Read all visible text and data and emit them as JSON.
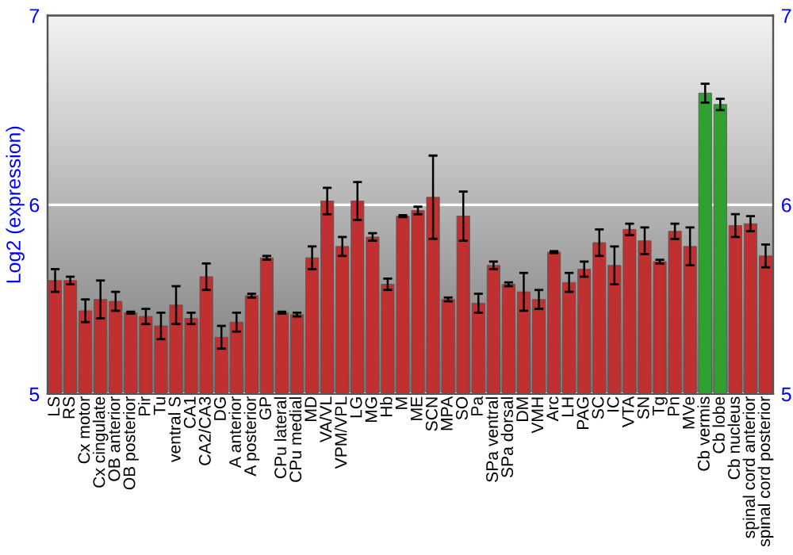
{
  "chart_data": {
    "type": "bar",
    "ylabel": "Log2 (expression)",
    "categories": [
      "LS",
      "RS",
      "Cx motor",
      "Cx cingulate",
      "OB anterior",
      "OB posterior",
      "Pir",
      "Tu",
      "ventral S",
      "CA1",
      "CA2/CA3",
      "DG",
      "A anterior",
      "A posterior",
      "GP",
      "CPu lateral",
      "CPu medial",
      "MD",
      "VA/VL",
      "VPM/VPL",
      "LG",
      "MG",
      "Hb",
      "M",
      "ME",
      "SCN",
      "MPA",
      "SO",
      "Pa",
      "SPa ventral",
      "SPa dorsal",
      "DM",
      "VMH",
      "Arc",
      "LH",
      "PAG",
      "SC",
      "IC",
      "VTA",
      "SN",
      "Tg",
      "Pn",
      "MVe",
      "Cb vermis",
      "Cb lobe",
      "Cb nucleus",
      "spinal cord anterior",
      "spinal cord posterior"
    ],
    "values": [
      5.6,
      5.6,
      5.44,
      5.5,
      5.49,
      5.43,
      5.41,
      5.36,
      5.47,
      5.4,
      5.62,
      5.3,
      5.38,
      5.52,
      5.72,
      5.43,
      5.42,
      5.72,
      6.02,
      5.78,
      6.02,
      5.83,
      5.58,
      5.94,
      5.97,
      6.04,
      5.5,
      5.94,
      5.48,
      5.68,
      5.58,
      5.54,
      5.5,
      5.75,
      5.59,
      5.66,
      5.8,
      5.68,
      5.87,
      5.81,
      5.7,
      5.86,
      5.78,
      6.59,
      6.53,
      5.89,
      5.9,
      5.73
    ],
    "errors": [
      0.06,
      0.02,
      0.06,
      0.1,
      0.05,
      0.005,
      0.04,
      0.07,
      0.1,
      0.03,
      0.07,
      0.06,
      0.05,
      0.01,
      0.01,
      0.005,
      0.01,
      0.06,
      0.07,
      0.05,
      0.1,
      0.02,
      0.03,
      0.005,
      0.02,
      0.22,
      0.01,
      0.13,
      0.05,
      0.02,
      0.01,
      0.1,
      0.05,
      0.005,
      0.05,
      0.04,
      0.07,
      0.1,
      0.03,
      0.07,
      0.01,
      0.04,
      0.1,
      0.05,
      0.03,
      0.06,
      0.04,
      0.06
    ],
    "colors": [
      "#c03030",
      "#c03030",
      "#c03030",
      "#c03030",
      "#c03030",
      "#c03030",
      "#c03030",
      "#c03030",
      "#c03030",
      "#c03030",
      "#c03030",
      "#c03030",
      "#c03030",
      "#c03030",
      "#c03030",
      "#c03030",
      "#c03030",
      "#c03030",
      "#c03030",
      "#c03030",
      "#c03030",
      "#c03030",
      "#c03030",
      "#c03030",
      "#c03030",
      "#c03030",
      "#c03030",
      "#c03030",
      "#c03030",
      "#c03030",
      "#c03030",
      "#c03030",
      "#c03030",
      "#c03030",
      "#c03030",
      "#c03030",
      "#c03030",
      "#c03030",
      "#c03030",
      "#c03030",
      "#c03030",
      "#c03030",
      "#c03030",
      "#30a030",
      "#30a030",
      "#c03030",
      "#c03030",
      "#c03030"
    ],
    "ylim": [
      5,
      7
    ],
    "yticks": [
      5,
      6,
      7
    ],
    "y2lim": [
      5,
      7
    ],
    "y2ticks": [
      5,
      6,
      7
    ],
    "grid": "y"
  }
}
